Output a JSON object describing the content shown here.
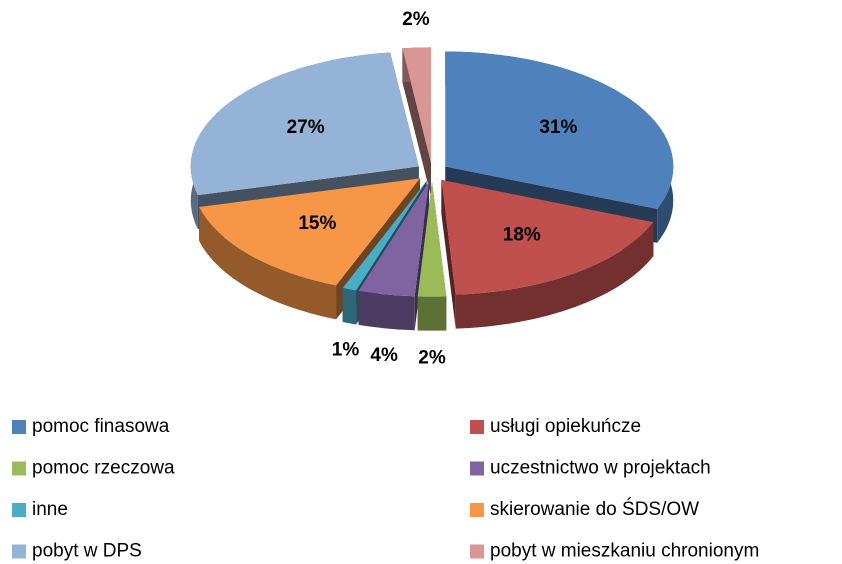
{
  "chart_data": {
    "type": "pie3d",
    "categories": [
      "pomoc finasowa",
      "usługi opiekuńcze",
      "pomoc rzeczowa",
      "uczestnictwo w projektach",
      "inne",
      "skierowanie do ŚDS/OW",
      "pobyt w DPS",
      "pobyt w mieszkaniu chronionym"
    ],
    "values": [
      31,
      18,
      2,
      4,
      1,
      15,
      27,
      2
    ],
    "value_labels": [
      "31%",
      "18%",
      "2%",
      "4%",
      "1%",
      "15%",
      "27%",
      "2%"
    ],
    "colors": [
      "#4f81bd",
      "#c0504d",
      "#9bbb59",
      "#8064a2",
      "#4bacc6",
      "#f79646",
      "#95b3d7",
      "#d99694"
    ],
    "legend": "bottom"
  }
}
